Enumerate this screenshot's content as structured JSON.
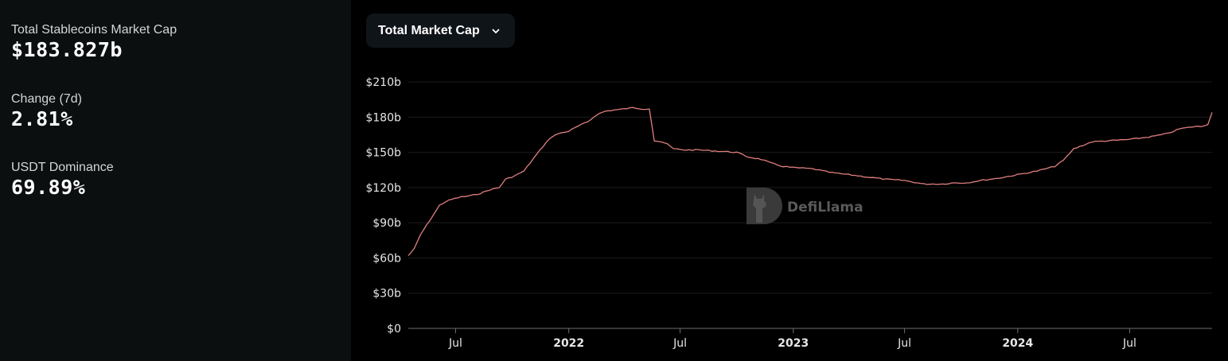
{
  "stats": [
    {
      "label": "Total Stablecoins Market Cap",
      "value": "$183.827b"
    },
    {
      "label": "Change (7d)",
      "value": "2.81%"
    },
    {
      "label": "USDT Dominance",
      "value": "69.89%"
    }
  ],
  "dropdown": {
    "label": "Total Market Cap",
    "icon": "chevron-down-icon"
  },
  "watermark": {
    "text": "DefiLlama",
    "icon": "llama-logo-icon"
  },
  "colors": {
    "line": "#e07f7f",
    "left_panel_bg": "#0b0f10",
    "chart_bg": "#000000",
    "grid": "#1c1c1c",
    "dropdown_bg": "#0f1419"
  },
  "chart_data": {
    "type": "line",
    "title": "Total Market Cap",
    "xlabel": "",
    "ylabel": "",
    "ylim": [
      0,
      210
    ],
    "y_unit": "billion USD",
    "yticks": [
      "$0",
      "$30b",
      "$60b",
      "$90b",
      "$120b",
      "$150b",
      "$180b",
      "$210b"
    ],
    "xticks": [
      {
        "label": "Jul",
        "bold": false
      },
      {
        "label": "2022",
        "bold": true
      },
      {
        "label": "Jul",
        "bold": false
      },
      {
        "label": "2023",
        "bold": true
      },
      {
        "label": "Jul",
        "bold": false
      },
      {
        "label": "2024",
        "bold": true
      },
      {
        "label": "Jul",
        "bold": false
      }
    ],
    "grid": true,
    "legend": "none",
    "series": [
      {
        "name": "Total Stablecoins Market Cap",
        "x": [
          "2021-04-15",
          "2021-04-25",
          "2021-05-05",
          "2021-05-15",
          "2021-05-25",
          "2021-06-05",
          "2021-06-15",
          "2021-06-25",
          "2021-07-10",
          "2021-07-25",
          "2021-08-10",
          "2021-08-25",
          "2021-09-10",
          "2021-09-20",
          "2021-10-05",
          "2021-10-20",
          "2021-11-05",
          "2021-11-20",
          "2021-12-01",
          "2021-12-15",
          "2022-01-01",
          "2022-01-15",
          "2022-02-01",
          "2022-02-15",
          "2022-03-01",
          "2022-03-15",
          "2022-04-01",
          "2022-04-15",
          "2022-05-01",
          "2022-05-08",
          "2022-05-12",
          "2022-05-20",
          "2022-06-01",
          "2022-06-10",
          "2022-06-20",
          "2022-07-10",
          "2022-08-01",
          "2022-09-01",
          "2022-10-01",
          "2022-10-20",
          "2022-11-10",
          "2022-11-25",
          "2022-12-15",
          "2023-01-01",
          "2023-02-01",
          "2023-03-01",
          "2023-03-15",
          "2023-04-01",
          "2023-05-01",
          "2023-06-01",
          "2023-07-01",
          "2023-08-01",
          "2023-09-01",
          "2023-09-20",
          "2023-10-10",
          "2023-11-01",
          "2023-12-01",
          "2024-01-01",
          "2024-02-01",
          "2024-03-01",
          "2024-03-15",
          "2024-04-01",
          "2024-05-01",
          "2024-06-01",
          "2024-07-01",
          "2024-08-01",
          "2024-09-01",
          "2024-09-20",
          "2024-10-15",
          "2024-10-25",
          "2024-11-05",
          "2024-11-12"
        ],
        "values": [
          62,
          68,
          80,
          88,
          96,
          105,
          108,
          110,
          112,
          113,
          115,
          118,
          120,
          127,
          130,
          134,
          145,
          155,
          162,
          166,
          168,
          172,
          176,
          182,
          185,
          186,
          187,
          188,
          187,
          187,
          187,
          160,
          159,
          157,
          153,
          152,
          152,
          151,
          150,
          146,
          144,
          141,
          138,
          137,
          136,
          133,
          132,
          131,
          129,
          127,
          126,
          123,
          123,
          124,
          124,
          126,
          128,
          131,
          134,
          138,
          143,
          153,
          159,
          160,
          161,
          163,
          166,
          170,
          172,
          172,
          174,
          184
        ]
      }
    ]
  }
}
